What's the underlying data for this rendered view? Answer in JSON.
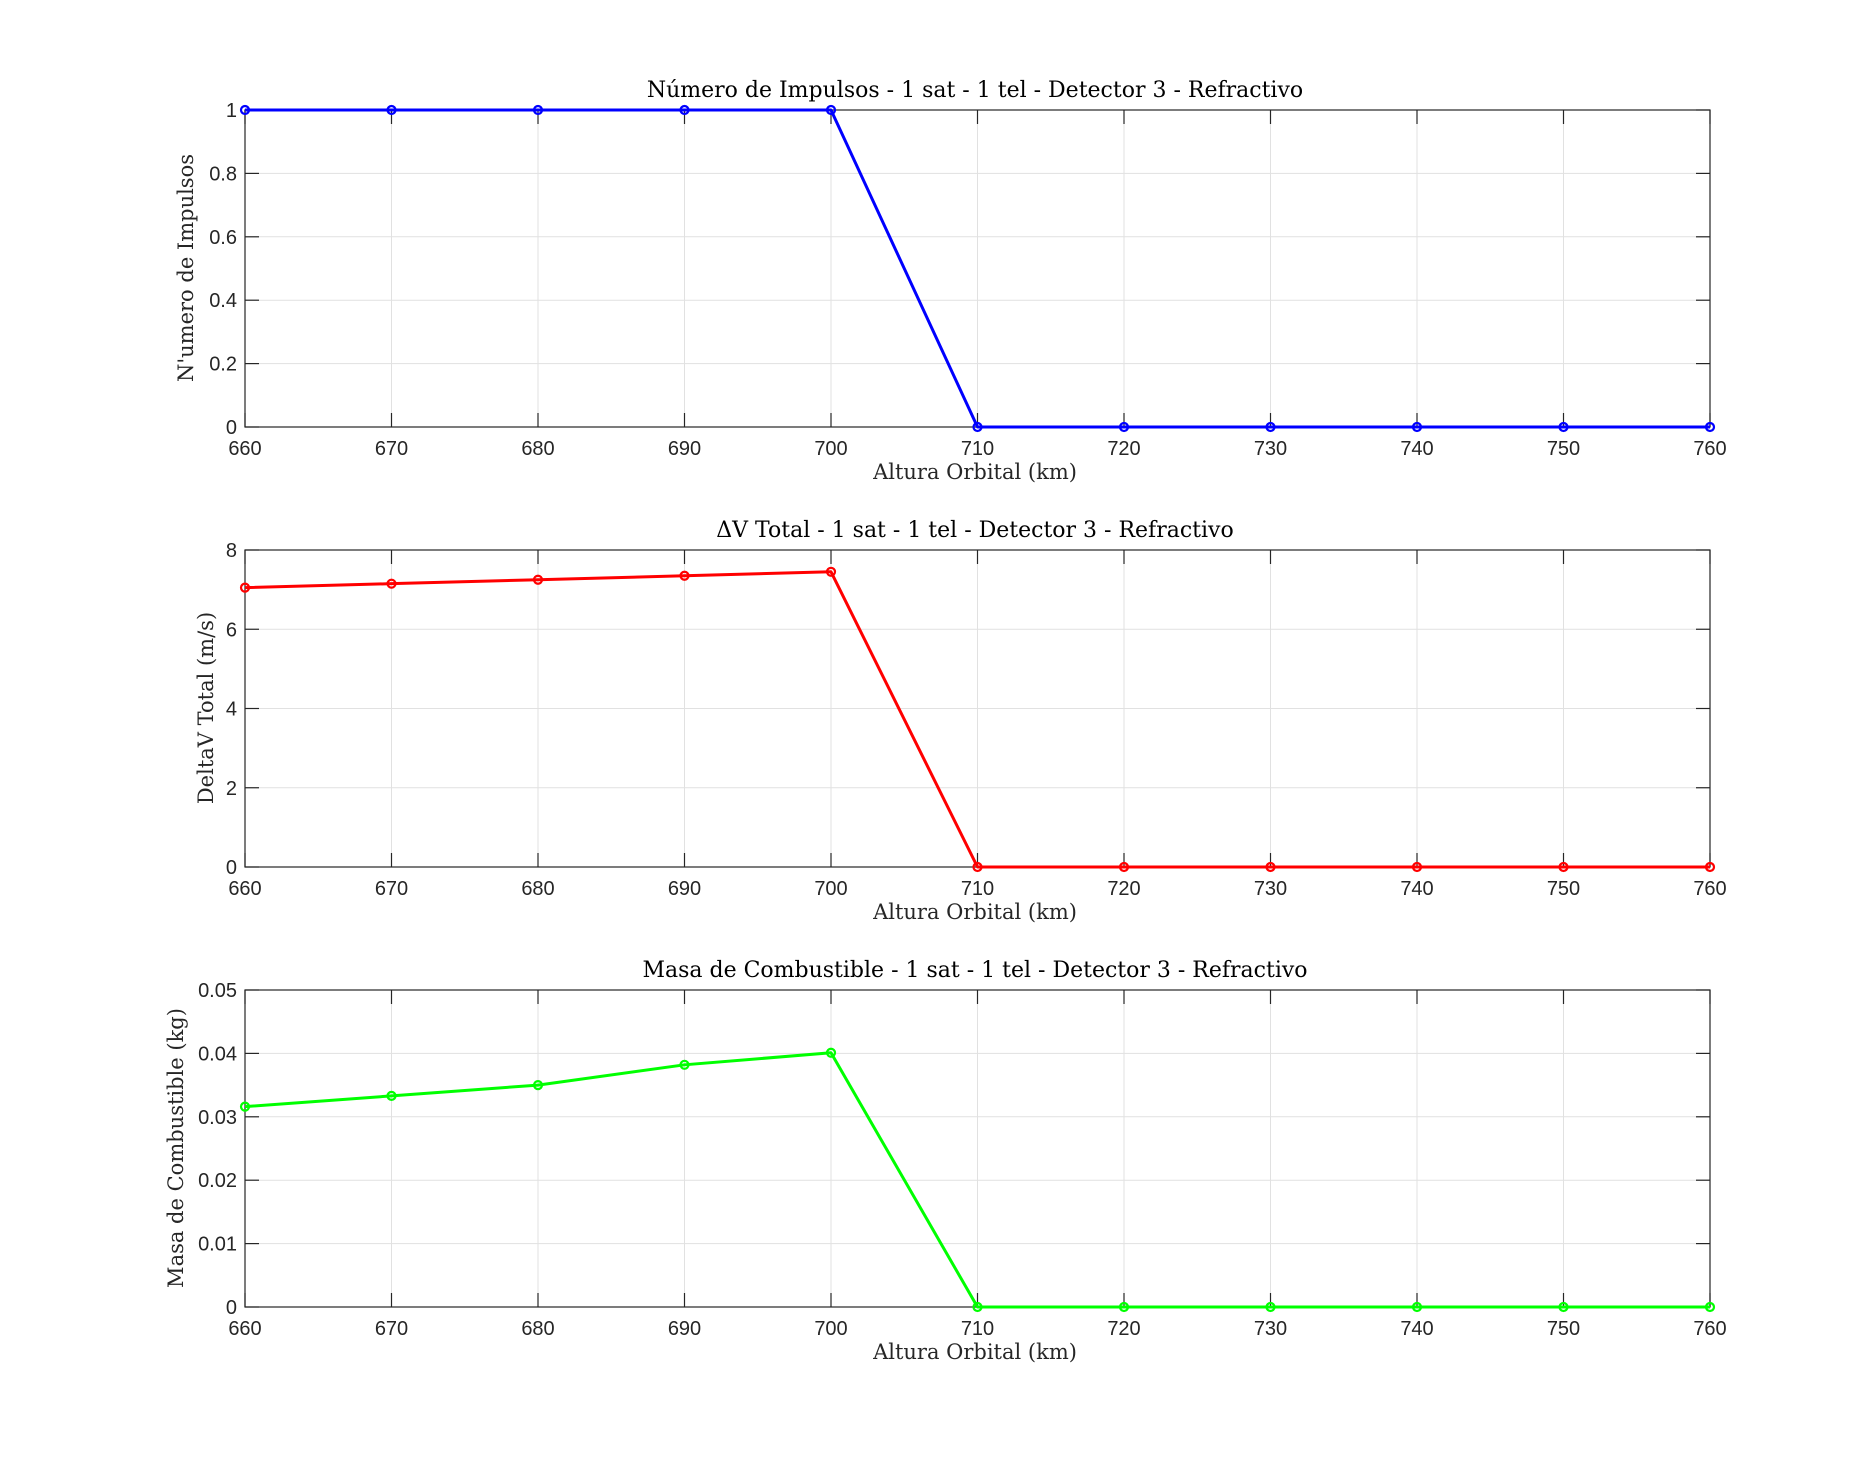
{
  "figure": {
    "background": "#ffffff"
  },
  "chart_data": [
    {
      "type": "line",
      "title": "Número de Impulsos - 1 sat - 1 tel - Detector 3 - Refractivo",
      "xlabel": "Altura Orbital (km)",
      "ylabel": "N'umero de Impulsos",
      "x": [
        660,
        670,
        680,
        690,
        700,
        710,
        720,
        730,
        740,
        750,
        760
      ],
      "series": [
        {
          "values": [
            1,
            1,
            1,
            1,
            1,
            0,
            0,
            0,
            0,
            0,
            0
          ],
          "color": "#0000ff",
          "marker": "circle"
        }
      ],
      "xlim": [
        660,
        760
      ],
      "ylim": [
        0,
        1
      ],
      "xticks": [
        "660",
        "670",
        "680",
        "690",
        "700",
        "710",
        "720",
        "730",
        "740",
        "750",
        "760"
      ],
      "yticks": [
        "0",
        "0.2",
        "0.4",
        "0.6",
        "0.8",
        "1"
      ],
      "yticks_values": [
        0,
        0.2,
        0.4,
        0.6,
        0.8,
        1
      ],
      "grid": true
    },
    {
      "type": "line",
      "title": "ΔV Total - 1 sat - 1 tel - Detector 3 - Refractivo",
      "xlabel": "Altura Orbital (km)",
      "ylabel": "DeltaV Total (m/s)",
      "x": [
        660,
        670,
        680,
        690,
        700,
        710,
        720,
        730,
        740,
        750,
        760
      ],
      "series": [
        {
          "values": [
            7.05,
            7.15,
            7.25,
            7.35,
            7.45,
            0,
            0,
            0,
            0,
            0,
            0
          ],
          "color": "#ff0000",
          "marker": "circle"
        }
      ],
      "xlim": [
        660,
        760
      ],
      "ylim": [
        0,
        8
      ],
      "xticks": [
        "660",
        "670",
        "680",
        "690",
        "700",
        "710",
        "720",
        "730",
        "740",
        "750",
        "760"
      ],
      "yticks": [
        "0",
        "2",
        "4",
        "6",
        "8"
      ],
      "yticks_values": [
        0,
        2,
        4,
        6,
        8
      ],
      "grid": true
    },
    {
      "type": "line",
      "title": "Masa de Combustible - 1 sat - 1 tel - Detector 3 - Refractivo",
      "xlabel": "Altura Orbital (km)",
      "ylabel": "Masa de Combustible (kg)",
      "x": [
        660,
        670,
        680,
        690,
        700,
        710,
        720,
        730,
        740,
        750,
        760
      ],
      "series": [
        {
          "values": [
            0.0316,
            0.0333,
            0.035,
            0.0382,
            0.0401,
            0,
            0,
            0,
            0,
            0,
            0
          ],
          "color": "#00ff00",
          "marker": "circle"
        }
      ],
      "xlim": [
        660,
        760
      ],
      "ylim": [
        0,
        0.05
      ],
      "xticks": [
        "660",
        "670",
        "680",
        "690",
        "700",
        "710",
        "720",
        "730",
        "740",
        "750",
        "760"
      ],
      "yticks": [
        "0",
        "0.01",
        "0.02",
        "0.03",
        "0.04",
        "0.05"
      ],
      "yticks_values": [
        0,
        0.01,
        0.02,
        0.03,
        0.04,
        0.05
      ],
      "grid": true
    }
  ]
}
